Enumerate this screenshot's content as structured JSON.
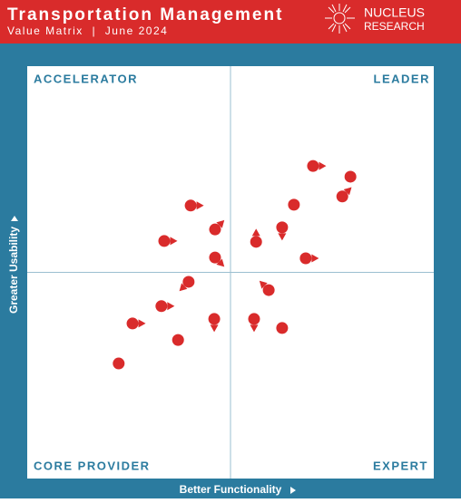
{
  "header": {
    "title": "Transportation Management",
    "subtitle": "Value Matrix  |  June 2024",
    "logo_top": "NUCLEUS",
    "logo_bottom": "RESEARCH"
  },
  "chart_data": {
    "type": "scatter",
    "quadrants": {
      "top_left": "ACCELERATOR",
      "top_right": "LEADER",
      "bottom_left": "CORE PROVIDER",
      "bottom_right": "EXPERT"
    },
    "x_label": "Better Functionality",
    "y_label": "Greater Usability",
    "xlim": [
      0,
      100
    ],
    "ylim": [
      0,
      100
    ],
    "color": "#d92b2b",
    "x": [
      70.3,
      79.5,
      77.5,
      65.6,
      40.2,
      46.2,
      62.7,
      56.3,
      33.7,
      68.5,
      46.2,
      39.7,
      59.4,
      33.0,
      46.0,
      55.8,
      25.9,
      62.7,
      37.1,
      22.5
    ],
    "values": [
      75.8,
      73.2,
      68.4,
      66.4,
      66.2,
      60.4,
      60.9,
      57.4,
      57.6,
      53.4,
      53.6,
      47.7,
      45.7,
      41.8,
      38.7,
      38.7,
      37.6,
      36.5,
      33.6,
      27.9
    ],
    "arrows": [
      "right",
      null,
      "up-right",
      null,
      "right",
      "up-right",
      "down",
      "up",
      "right",
      "right",
      "down-right",
      "down-left",
      "up-left",
      "right",
      "down",
      "down",
      "right",
      null,
      null,
      null
    ]
  }
}
